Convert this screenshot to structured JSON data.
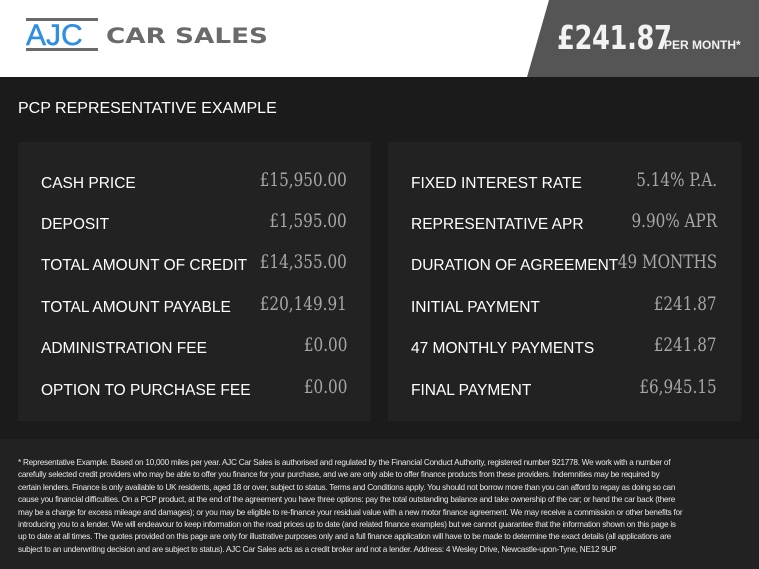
{
  "header": {
    "logo_text": "AJC CAR SALES",
    "monthly_price": "£241.87",
    "per_month_label": "PER MONTH*"
  },
  "colors": {
    "logo_blue": "#2f8fe0",
    "logo_gray": "#6a6a6a",
    "header_dark": "#555555",
    "background": "#1b1b1b",
    "panel": "#222222"
  },
  "section_title": "PCP REPRESENTATIVE EXAMPLE",
  "left_panel": [
    {
      "label": "CASH PRICE",
      "value": "£15,950.00"
    },
    {
      "label": "DEPOSIT",
      "value": "£1,595.00"
    },
    {
      "label": "TOTAL AMOUNT OF CREDIT",
      "value": "£14,355.00"
    },
    {
      "label": "TOTAL AMOUNT PAYABLE",
      "value": "£20,149.91"
    },
    {
      "label": "ADMINISTRATION FEE",
      "value": "£0.00"
    },
    {
      "label": "OPTION TO PURCHASE FEE",
      "value": "£0.00"
    }
  ],
  "right_panel": [
    {
      "label": "FIXED INTEREST RATE",
      "value": "5.14% P.A."
    },
    {
      "label": "REPRESENTATIVE APR",
      "value": "9.90% APR"
    },
    {
      "label": "DURATION OF AGREEMENT",
      "value": "49 MONTHS"
    },
    {
      "label": "INITIAL PAYMENT",
      "value": "£241.87"
    },
    {
      "label": "47 MONTHLY PAYMENTS",
      "value": "£241.87"
    },
    {
      "label": "FINAL PAYMENT",
      "value": "£6,945.15"
    }
  ],
  "disclaimer": "* Representative Example. Based on 10,000 miles per year. AJC Car Sales is authorised and regulated by the Financial Conduct Authority, registered number 921778. We work with a number of carefully selected credit providers who may be able to offer you finance for your purchase, and we are only able to offer finance products from these providers. Indemnities may be required by certain lenders. Finance is only available to UK residents, aged 18 or over, subject to status. Terms and Conditions apply. You should not borrow more than you can afford to repay as doing so can cause you financial difficulties. On a PCP product, at the end of the agreement you have three options: pay the total outstanding balance and take ownership of the car; or hand the car back (there may be a charge for excess mileage and damages); or you may be eligible to re-finance your residual value with a new motor finance agreement. We may receive a commission or other benefits for introducing you to a lender. We will endeavour to keep information on the road prices up to date (and related finance examples) but we cannot guarantee that the information shown on this page is up to date at all times. The quotes provided on this page are only for illustrative purposes only and a full finance application will have to be made to determine the exact details (all applications are subject to an underwriting decision and are subject to status). AJC Car Sales acts as a credit broker and not a lender. Address: 4 Wesley Drive, Newcastle-upon-Tyne, NE12 9UP"
}
